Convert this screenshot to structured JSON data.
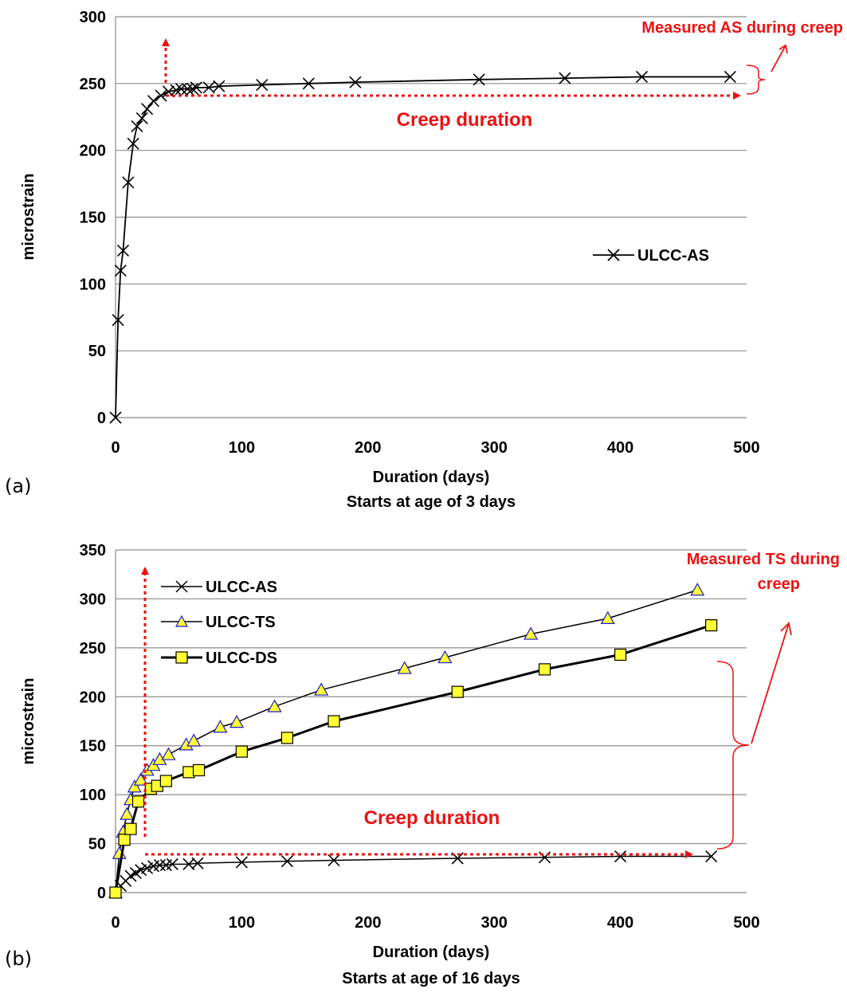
{
  "chart_data": [
    {
      "type": "line",
      "panel_label": "(a)",
      "xlabel": "Duration (days)",
      "xlabel2": "Starts at age of 3 days",
      "ylabel": "microstrain",
      "xlim": [
        0,
        500
      ],
      "ylim": [
        0,
        300
      ],
      "xticks": [
        0,
        100,
        200,
        300,
        400,
        500
      ],
      "yticks": [
        0,
        50,
        100,
        150,
        200,
        250,
        300
      ],
      "grid": "horizontal",
      "legend_position": "center-right",
      "series": [
        {
          "name": "ULCC-AS",
          "marker": "x",
          "color": "#000000",
          "x": [
            0,
            2,
            4,
            6,
            10,
            14,
            17,
            21,
            25,
            30,
            36,
            42,
            48,
            52,
            57,
            61,
            64,
            74,
            82,
            116,
            153,
            190,
            288,
            356,
            417,
            487
          ],
          "y": [
            0,
            73,
            110,
            125,
            176,
            205,
            218,
            224,
            231,
            237,
            241,
            244,
            245,
            246,
            246,
            246,
            247,
            247,
            248,
            249,
            250,
            251,
            253,
            254,
            255,
            255
          ]
        }
      ],
      "annotations": {
        "measured": "Measured AS during creep",
        "duration": "Creep duration"
      }
    },
    {
      "type": "line",
      "panel_label": "(b)",
      "xlabel": "Duration (days)",
      "xlabel2": "Starts at age of 16 days",
      "ylabel": "microstrain",
      "xlim": [
        0,
        500
      ],
      "ylim": [
        0,
        350
      ],
      "xticks": [
        0,
        100,
        200,
        300,
        400,
        500
      ],
      "yticks": [
        0,
        50,
        100,
        150,
        200,
        250,
        300,
        350
      ],
      "grid": "horizontal",
      "legend_position": "top-left",
      "series": [
        {
          "name": "ULCC-AS",
          "marker": "x",
          "color": "#000000",
          "x": [
            0,
            4,
            8,
            12,
            16,
            20,
            25,
            30,
            35,
            40,
            45,
            58,
            65,
            100,
            136,
            173,
            271,
            340,
            400,
            472
          ],
          "y": [
            0,
            7,
            12,
            17,
            20,
            23,
            25,
            27,
            28,
            28,
            29,
            29,
            30,
            31,
            32,
            33,
            35,
            36,
            37,
            37
          ]
        },
        {
          "name": "ULCC-TS",
          "marker": "triangle",
          "color": "#ffff33",
          "x": [
            0,
            3,
            6,
            9,
            12,
            15,
            20,
            25,
            30,
            35,
            42,
            56,
            62,
            83,
            96,
            126,
            163,
            229,
            261,
            329,
            390,
            461
          ],
          "y": [
            0,
            40,
            62,
            80,
            95,
            108,
            115,
            125,
            130,
            136,
            141,
            151,
            155,
            169,
            174,
            190,
            207,
            229,
            240,
            264,
            280,
            309
          ]
        },
        {
          "name": "ULCC-DS",
          "marker": "square",
          "color": "#ffff33",
          "x": [
            0,
            7,
            12,
            18,
            28,
            33,
            40,
            58,
            66,
            100,
            136,
            173,
            271,
            340,
            400,
            472
          ],
          "y": [
            0,
            54,
            65,
            93,
            106,
            109,
            114,
            123,
            125,
            144,
            158,
            175,
            205,
            228,
            243,
            273
          ]
        }
      ],
      "annotations": {
        "measured_line1": "Measured TS during",
        "measured_line2": "creep",
        "duration": "Creep duration"
      }
    }
  ]
}
